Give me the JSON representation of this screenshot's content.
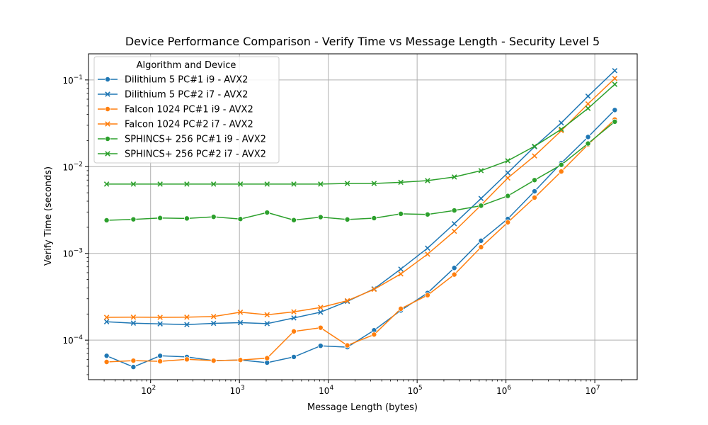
{
  "chart_data": {
    "type": "line",
    "title": "Device Performance Comparison - Verify Time vs Message Length - Security Level 5",
    "xlabel": "Message Length (bytes)",
    "ylabel": "Verify Time (seconds)",
    "xscale": "log",
    "yscale": "log",
    "xlim": [
      20,
      30000000
    ],
    "ylim": [
      3.5e-05,
      0.2
    ],
    "x_tick_labels": [
      "10^2",
      "10^3",
      "10^4",
      "10^5",
      "10^6",
      "10^7"
    ],
    "y_tick_labels": [
      "10^-4",
      "10^-3",
      "10^-2",
      "10^-1"
    ],
    "grid": true,
    "legend": {
      "title": "Algorithm and Device",
      "placement": "top-left"
    },
    "x": [
      32,
      64,
      128,
      256,
      512,
      1024,
      2048,
      4096,
      8192,
      16384,
      32768,
      65536,
      131072,
      262144,
      524288,
      1048576,
      2097152,
      4194304,
      8388608,
      16777216
    ],
    "series": [
      {
        "name": "Dilithium 5 PC#1 i9 - AVX2",
        "color": "#1f77b4",
        "marker": "circle",
        "values": [
          6.6e-05,
          4.9e-05,
          6.6e-05,
          6.4e-05,
          5.8e-05,
          5.9e-05,
          5.5e-05,
          6.4e-05,
          8.6e-05,
          8.3e-05,
          0.00013,
          0.00022,
          0.00035,
          0.00068,
          0.0014,
          0.0025,
          0.0052,
          0.011,
          0.022,
          0.045
        ]
      },
      {
        "name": "Dilithium 5 PC#2 i7 - AVX2",
        "color": "#1f77b4",
        "marker": "x",
        "values": [
          0.000163,
          0.000157,
          0.000154,
          0.000151,
          0.000156,
          0.000159,
          0.000155,
          0.00018,
          0.00021,
          0.00028,
          0.00039,
          0.00066,
          0.00115,
          0.0022,
          0.0043,
          0.0085,
          0.017,
          0.032,
          0.065,
          0.128
        ]
      },
      {
        "name": "Falcon 1024 PC#1 i9 - AVX2",
        "color": "#ff7f0e",
        "marker": "circle",
        "values": [
          5.6e-05,
          5.8e-05,
          5.7e-05,
          6e-05,
          5.8e-05,
          5.9e-05,
          6.2e-05,
          0.000126,
          0.000139,
          8.7e-05,
          0.000116,
          0.00023,
          0.00033,
          0.00057,
          0.00118,
          0.00228,
          0.0044,
          0.0088,
          0.018,
          0.035
        ]
      },
      {
        "name": "Falcon 1024 PC#2 i7 - AVX2",
        "color": "#ff7f0e",
        "marker": "x",
        "values": [
          0.000183,
          0.000184,
          0.000183,
          0.000184,
          0.000187,
          0.00021,
          0.000196,
          0.000212,
          0.000238,
          0.000285,
          0.000385,
          0.00058,
          0.00098,
          0.0018,
          0.0036,
          0.0074,
          0.0133,
          0.026,
          0.053,
          0.104
        ]
      },
      {
        "name": "SPHINCS+ 256 PC#1 i9 - AVX2",
        "color": "#2ca02c",
        "marker": "circle",
        "values": [
          0.00241,
          0.00247,
          0.00256,
          0.00253,
          0.00264,
          0.00249,
          0.00296,
          0.00242,
          0.00262,
          0.00246,
          0.00255,
          0.00286,
          0.00281,
          0.00313,
          0.00355,
          0.0046,
          0.007,
          0.0105,
          0.0185,
          0.033
        ]
      },
      {
        "name": "SPHINCS+ 256 PC#2 i7 - AVX2",
        "color": "#2ca02c",
        "marker": "x",
        "values": [
          0.0063,
          0.0063,
          0.0063,
          0.0063,
          0.0063,
          0.0063,
          0.0063,
          0.0063,
          0.0063,
          0.0064,
          0.0064,
          0.0066,
          0.0069,
          0.0076,
          0.009,
          0.0117,
          0.0172,
          0.027,
          0.047,
          0.089
        ]
      }
    ]
  }
}
